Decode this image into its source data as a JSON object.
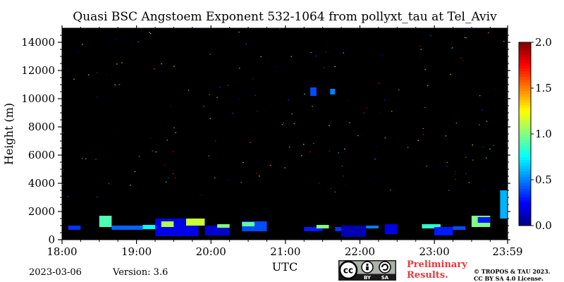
{
  "chart_data": {
    "type": "heatmap",
    "title": "Quasi BSC Angstoem Exponent 532-1064 from pollyxt_tau at Tel_Aviv",
    "xlabel": "UTC",
    "ylabel": "Height (m)",
    "x_ticks": [
      "18:00",
      "19:00",
      "20:00",
      "21:00",
      "22:00",
      "23:00",
      "23:59"
    ],
    "y_ticks": [
      "0",
      "2000",
      "4000",
      "6000",
      "8000",
      "10000",
      "12000",
      "14000"
    ],
    "xlim": [
      "18:00",
      "23:59"
    ],
    "ylim": [
      0,
      15000
    ],
    "background_color": "#000000",
    "colorbar": {
      "range": [
        0.0,
        2.0
      ],
      "ticks": [
        "0.0",
        "0.5",
        "1.0",
        "1.5",
        "2.0"
      ],
      "colormap": "jet"
    },
    "features": [
      {
        "start": "18:05",
        "end": "18:15",
        "base": 700,
        "top": 1000,
        "value": 0.35
      },
      {
        "start": "18:30",
        "end": "18:40",
        "base": 900,
        "top": 1700,
        "value": 0.9
      },
      {
        "start": "18:40",
        "end": "19:05",
        "base": 700,
        "top": 1000,
        "value": 0.45
      },
      {
        "start": "19:05",
        "end": "19:15",
        "base": 750,
        "top": 1050,
        "value": 0.75
      },
      {
        "start": "19:15",
        "end": "19:50",
        "base": 250,
        "top": 1500,
        "value": 0.2
      },
      {
        "start": "19:20",
        "end": "19:30",
        "base": 900,
        "top": 1300,
        "value": 1.1
      },
      {
        "start": "19:40",
        "end": "19:55",
        "base": 1000,
        "top": 1500,
        "value": 1.15
      },
      {
        "start": "19:55",
        "end": "20:15",
        "base": 300,
        "top": 1000,
        "value": 0.15
      },
      {
        "start": "20:05",
        "end": "20:15",
        "base": 850,
        "top": 1100,
        "value": 1.0
      },
      {
        "start": "20:25",
        "end": "20:45",
        "base": 600,
        "top": 1300,
        "value": 0.4
      },
      {
        "start": "20:25",
        "end": "20:35",
        "base": 950,
        "top": 1250,
        "value": 0.95
      },
      {
        "start": "21:15",
        "end": "21:30",
        "base": 600,
        "top": 900,
        "value": 0.3
      },
      {
        "start": "21:25",
        "end": "21:35",
        "base": 800,
        "top": 1050,
        "value": 1.0
      },
      {
        "start": "21:40",
        "end": "21:50",
        "base": 600,
        "top": 900,
        "value": 0.35
      },
      {
        "start": "21:45",
        "end": "22:05",
        "base": 200,
        "top": 1000,
        "value": 0.1
      },
      {
        "start": "22:05",
        "end": "22:15",
        "base": 800,
        "top": 1000,
        "value": 0.5
      },
      {
        "start": "22:20",
        "end": "22:30",
        "base": 400,
        "top": 1100,
        "value": 0.2
      },
      {
        "start": "22:50",
        "end": "23:05",
        "base": 800,
        "top": 1100,
        "value": 0.85
      },
      {
        "start": "23:00",
        "end": "23:15",
        "base": 300,
        "top": 900,
        "value": 0.3
      },
      {
        "start": "23:15",
        "end": "23:25",
        "base": 700,
        "top": 950,
        "value": 0.4
      },
      {
        "start": "23:30",
        "end": "23:45",
        "base": 900,
        "top": 1700,
        "value": 1.0
      },
      {
        "start": "23:35",
        "end": "23:45",
        "base": 1200,
        "top": 1600,
        "value": 0.3
      },
      {
        "start": "23:53",
        "end": "23:59",
        "base": 1500,
        "top": 3500,
        "value": 0.6
      },
      {
        "start": "21:20",
        "end": "21:25",
        "base": 10200,
        "top": 10800,
        "value": 0.4
      },
      {
        "start": "21:36",
        "end": "21:40",
        "base": 10300,
        "top": 10700,
        "value": 0.5
      }
    ]
  },
  "footer": {
    "date": "2023-03-06",
    "version": "Version: 3.6",
    "preliminary_line1": "Preliminary",
    "preliminary_line2": "Results.",
    "license_line1": "© TROPOS & TAU 2023.",
    "license_line2": "CC BY SA 4.0 License.",
    "cc_badge": {
      "cc": "cc",
      "by": "BY",
      "sa": "SA"
    }
  }
}
